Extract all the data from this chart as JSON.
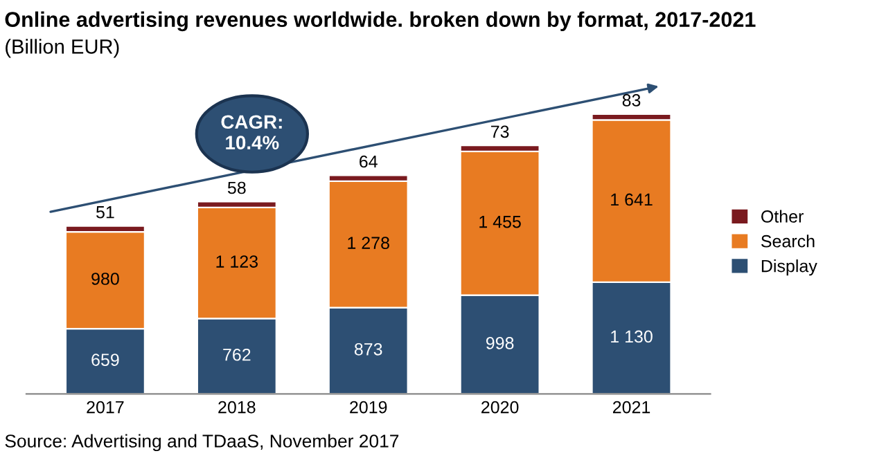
{
  "chart_data": {
    "type": "bar",
    "title": "Online advertising revenues worldwide. broken down by format, 2017-2021",
    "subtitle": "(Billion EUR)",
    "categories": [
      "2017",
      "2018",
      "2019",
      "2020",
      "2021"
    ],
    "stacked": true,
    "series": [
      {
        "name": "Display",
        "color": "#2d4f73",
        "values": [
          659,
          762,
          873,
          998,
          1130
        ],
        "value_labels": [
          "659",
          "762",
          "873",
          "998",
          "1 130"
        ]
      },
      {
        "name": "Search",
        "color": "#e87b22",
        "values": [
          980,
          1123,
          1278,
          1455,
          1641
        ],
        "value_labels": [
          "980",
          "1 123",
          "1 278",
          "1 455",
          "1 641"
        ]
      },
      {
        "name": "Other",
        "color": "#7a1a1f",
        "values": [
          60,
          60,
          60,
          60,
          60
        ]
      }
    ],
    "annotations": [
      "CAGR:\n10.4%",
      "Source: Advertising and TDaaS, November 2017",
      {
        "text": "51",
        "x": "2017",
        "y": 1699
      },
      {
        "text": "58",
        "x": "2018",
        "y": 1945
      },
      {
        "text": "64",
        "x": "2019",
        "y": 2211
      },
      {
        "text": "73",
        "x": "2020",
        "y": 2513
      },
      {
        "text": "83",
        "x": "2021",
        "y": 2831
      }
    ],
    "legend": "right",
    "grid": false,
    "tick_labels": "x"
  }
}
